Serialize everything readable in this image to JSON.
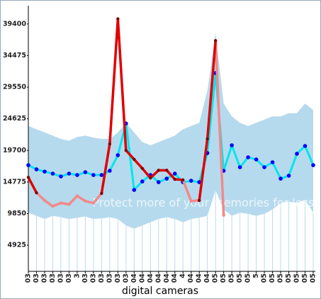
{
  "chart_data": {
    "type": "line",
    "x_label": "digital cameras",
    "annotation": "Protect more of your memories for less!",
    "categories": [
      "03",
      "03",
      "03",
      "03",
      "03",
      "03",
      "3",
      "03",
      "03",
      "03",
      "03",
      "03",
      "03",
      "04",
      "04",
      "04",
      "04",
      "04",
      "04",
      "4",
      "04",
      "04",
      "04",
      "05",
      "05",
      "05",
      "05",
      "05",
      "5",
      "05",
      "05",
      "05",
      "05",
      "05",
      "05",
      "05"
    ],
    "band": {
      "color": "#a9d3ea",
      "upper": [
        23500,
        23000,
        22500,
        22000,
        21500,
        21200,
        21800,
        22000,
        21700,
        21500,
        21500,
        22500,
        24000,
        22500,
        21000,
        20500,
        21000,
        21500,
        22000,
        23000,
        23500,
        24000,
        29000,
        38000,
        27000,
        25000,
        24000,
        23500,
        24000,
        24500,
        25000,
        25000,
        25500,
        25500,
        27000,
        26000
      ],
      "lower": [
        10000,
        9500,
        9000,
        9500,
        9300,
        9000,
        9200,
        9400,
        9000,
        9100,
        9300,
        9000,
        8000,
        7500,
        8000,
        8500,
        9000,
        9300,
        9000,
        8500,
        9000,
        9200,
        9500,
        13500,
        10500,
        9500,
        10000,
        9800,
        9500,
        9800,
        10500,
        11500,
        11700,
        11500,
        12000,
        10000
      ]
    },
    "series": [
      {
        "color": "#00e5ee",
        "marker_color": "#0000ff",
        "values": [
          17400,
          16750,
          16400,
          16080,
          15640,
          16080,
          15860,
          16300,
          15860,
          15860,
          16520,
          18950,
          23900,
          13540,
          14860,
          15860,
          14750,
          15300,
          16080,
          14750,
          14970,
          14750,
          19280,
          31750,
          16520,
          20500,
          17080,
          18620,
          18290,
          17080,
          17850,
          15300,
          15750,
          19180,
          20390,
          17400
        ]
      },
      {
        "color": "#f08a8a",
        "marker_color": "#f08a8a",
        "values": [
          null,
          13100,
          11900,
          11000,
          11500,
          11300,
          12600,
          11800,
          11500,
          13000,
          null,
          null,
          null,
          null,
          null,
          null,
          null,
          null,
          null,
          15100,
          11800,
          11900,
          null,
          36800,
          9600,
          null,
          null,
          null,
          null,
          null,
          null,
          null,
          null,
          null,
          null,
          null
        ]
      },
      {
        "color": "#e00000",
        "marker_color": "#800000",
        "values": [
          15500,
          13100,
          null,
          null,
          null,
          null,
          null,
          null,
          null,
          13000,
          20700,
          40200,
          19700,
          18300,
          16900,
          15400,
          16600,
          16600,
          15200,
          15100,
          null,
          11900,
          21500,
          36800,
          null,
          null,
          null,
          null,
          null,
          null,
          null,
          null,
          null,
          null,
          null,
          null
        ]
      }
    ],
    "ylim": [
      850,
      42250
    ],
    "yticks": [
      4925,
      9850,
      14775,
      19700,
      24625,
      29550,
      34475,
      39400
    ]
  }
}
